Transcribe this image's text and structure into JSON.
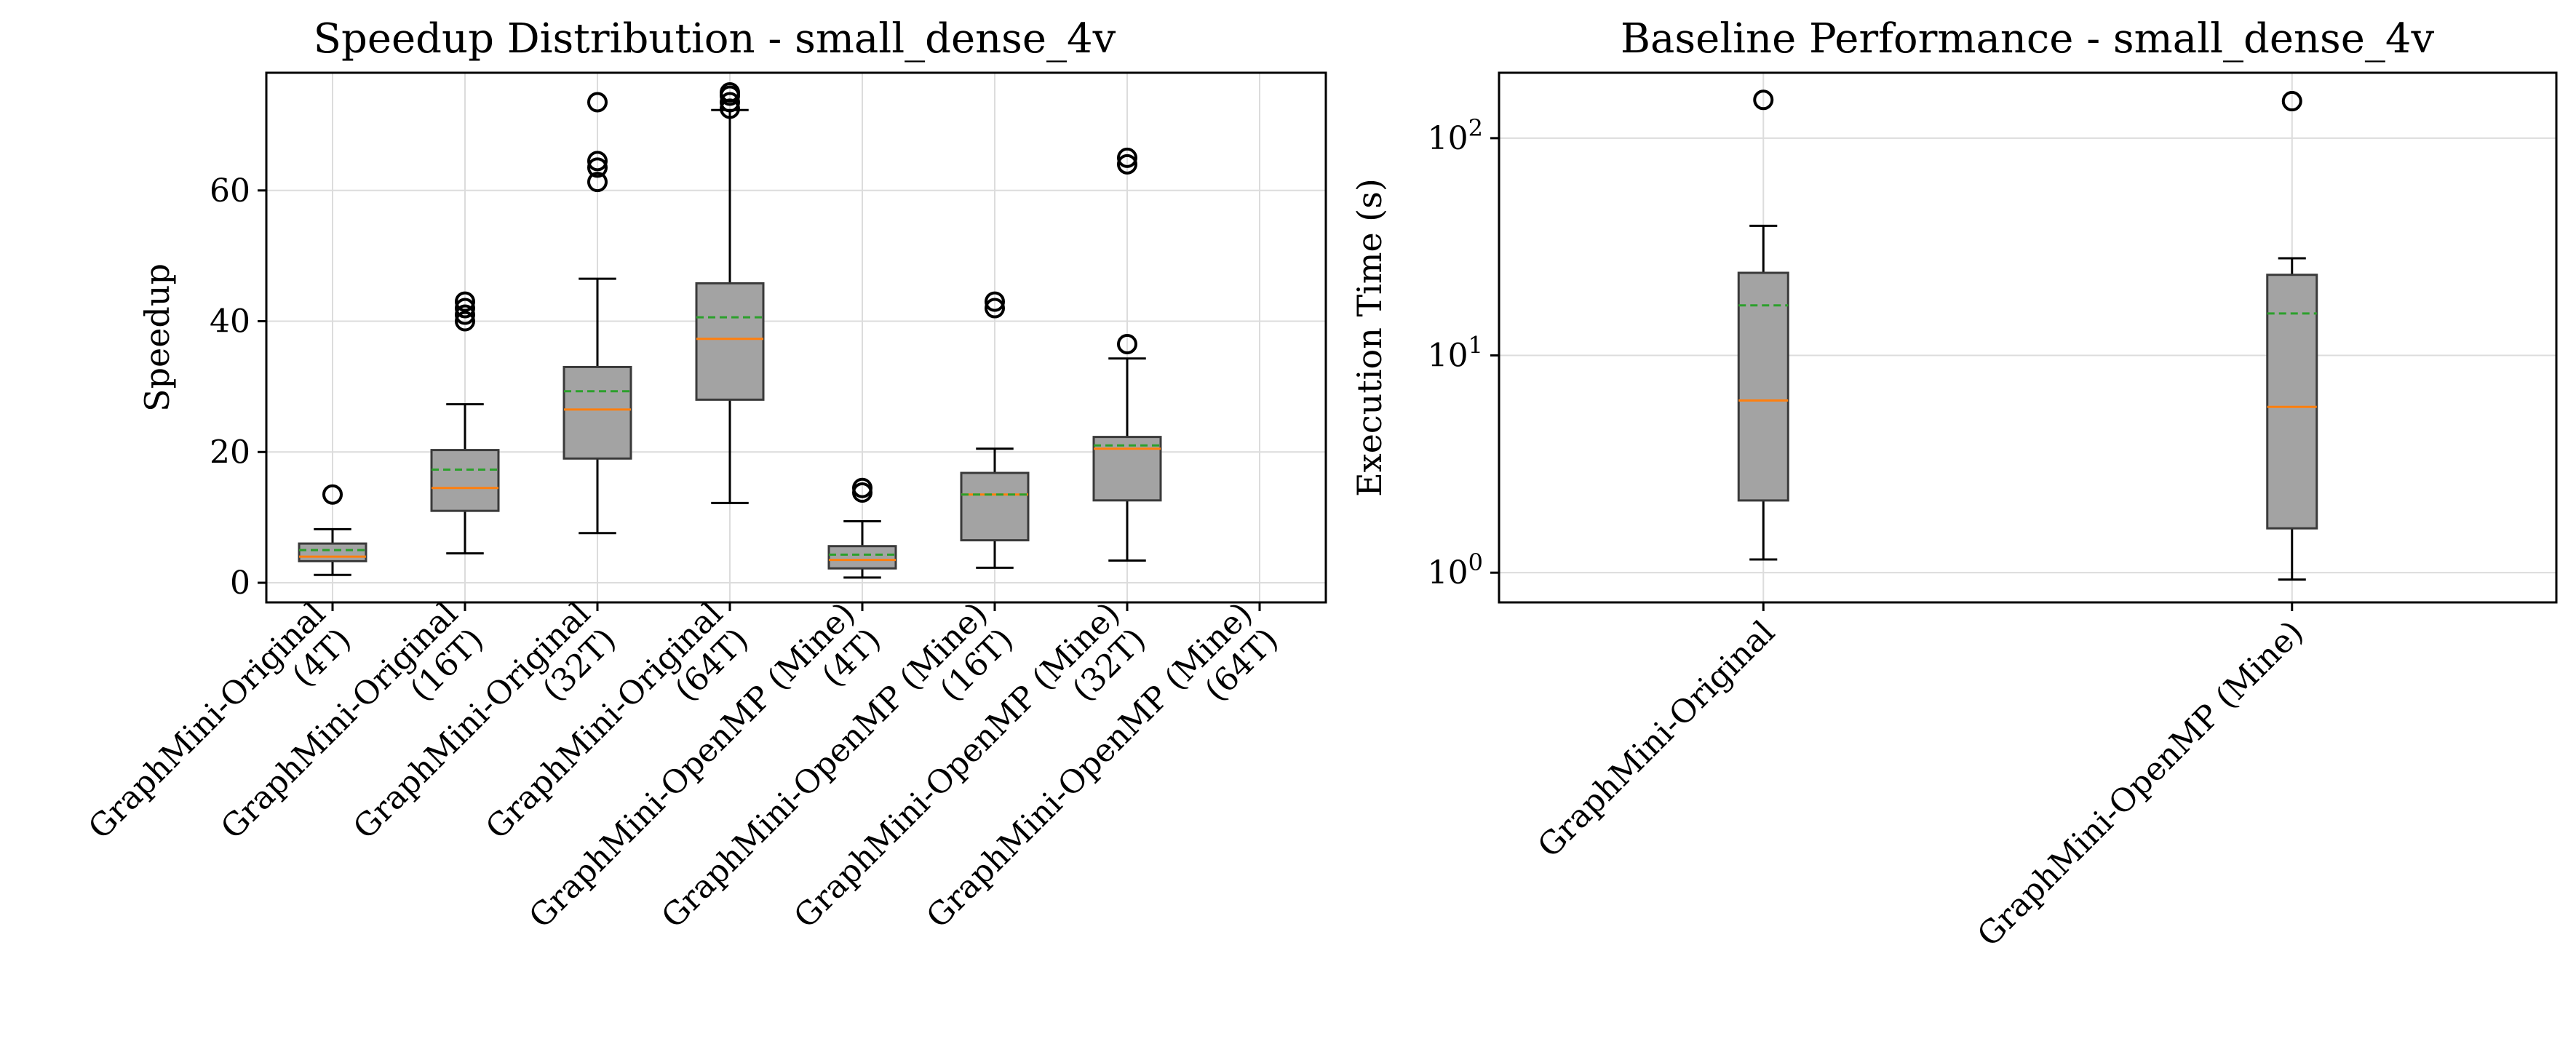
{
  "chart_data": [
    {
      "type": "box",
      "title": "Speedup Distribution - small_dense_4v",
      "xlabel": "",
      "ylabel": "Speedup",
      "ylim": [
        -3,
        78
      ],
      "y_scale": "linear",
      "y_ticks": [
        0,
        20,
        40,
        60
      ],
      "grid": true,
      "categories": [
        [
          "GraphMini-Original",
          "(4T)"
        ],
        [
          "GraphMini-Original",
          "(16T)"
        ],
        [
          "GraphMini-Original",
          "(32T)"
        ],
        [
          "GraphMini-Original",
          "(64T)"
        ],
        [
          "GraphMini-OpenMP (Mine)",
          "(4T)"
        ],
        [
          "GraphMini-OpenMP (Mine)",
          "(16T)"
        ],
        [
          "GraphMini-OpenMP (Mine)",
          "(32T)"
        ],
        [
          "GraphMini-OpenMP (Mine)",
          "(64T)"
        ]
      ],
      "boxes": [
        {
          "whisker_low": 1.2,
          "q1": 3.3,
          "median": 4.0,
          "mean": 5.0,
          "q3": 6.0,
          "whisker_high": 8.2,
          "outliers": [
            13.5
          ]
        },
        {
          "whisker_low": 4.5,
          "q1": 11.0,
          "median": 14.5,
          "mean": 17.3,
          "q3": 20.3,
          "whisker_high": 27.3,
          "outliers": [
            40.0,
            41.0,
            42.0,
            43.0
          ]
        },
        {
          "whisker_low": 7.6,
          "q1": 19.0,
          "median": 26.5,
          "mean": 29.3,
          "q3": 33.0,
          "whisker_high": 46.5,
          "outliers": [
            61.3,
            63.5,
            64.5,
            73.5
          ]
        },
        {
          "whisker_low": 12.2,
          "q1": 28.0,
          "median": 37.3,
          "mean": 40.6,
          "q3": 45.8,
          "whisker_high": 72.3,
          "outliers": [
            72.5,
            73.5,
            74.5,
            75.0
          ]
        },
        {
          "whisker_low": 0.8,
          "q1": 2.2,
          "median": 3.5,
          "mean": 4.3,
          "q3": 5.6,
          "whisker_high": 9.4,
          "outliers": [
            13.8,
            14.5
          ]
        },
        {
          "whisker_low": 2.3,
          "q1": 6.5,
          "median": 13.5,
          "mean": 13.5,
          "q3": 16.8,
          "whisker_high": 20.5,
          "outliers": [
            42.0,
            43.0
          ]
        },
        {
          "whisker_low": 3.4,
          "q1": 12.6,
          "median": 20.5,
          "mean": 21.0,
          "q3": 22.3,
          "whisker_high": 34.3,
          "outliers": [
            36.5,
            64.0,
            65.0
          ]
        },
        null
      ]
    },
    {
      "type": "box",
      "title": "Baseline Performance - small_dense_4v",
      "xlabel": "",
      "ylabel": "Execution Time (s)",
      "ylim": [
        0.73,
        200
      ],
      "y_scale": "log",
      "y_ticks": [
        {
          "value": 1,
          "base": "10",
          "exp": "0"
        },
        {
          "value": 10,
          "base": "10",
          "exp": "1"
        },
        {
          "value": 100,
          "base": "10",
          "exp": "2"
        }
      ],
      "grid": true,
      "categories": [
        [
          "GraphMini-Original"
        ],
        [
          "GraphMini-OpenMP (Mine)"
        ]
      ],
      "boxes": [
        {
          "whisker_low": 1.15,
          "q1": 2.15,
          "median": 6.2,
          "mean": 17.0,
          "q3": 24.0,
          "whisker_high": 39.5,
          "outliers": [
            150
          ]
        },
        {
          "whisker_low": 0.93,
          "q1": 1.6,
          "median": 5.8,
          "mean": 15.6,
          "q3": 23.5,
          "whisker_high": 28.0,
          "outliers": [
            148
          ]
        }
      ]
    }
  ],
  "colors": {
    "box_fill": "#a3a3a3",
    "box_edge": "#3a3a3a",
    "median": "#ff7f0e",
    "mean": "#2ca02c",
    "whisker": "#000000"
  }
}
